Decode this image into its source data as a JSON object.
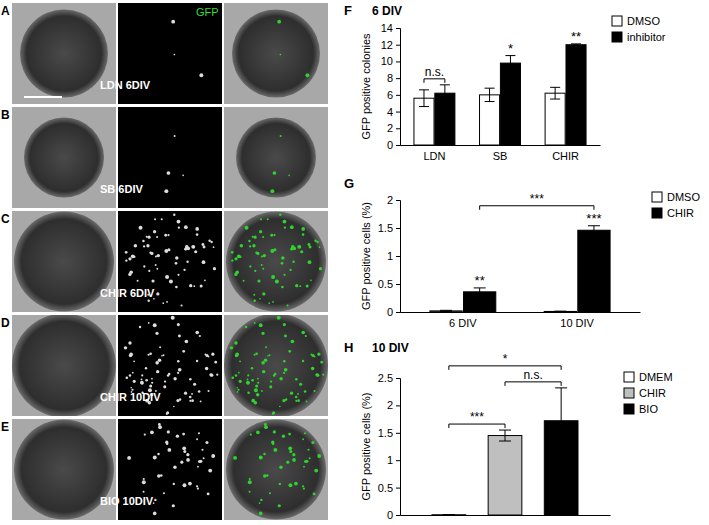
{
  "image_panels": {
    "channel_label": "GFP",
    "rows": [
      {
        "letter": "A",
        "label": "LDN 6DIV"
      },
      {
        "letter": "B",
        "label": "SB 6DIV"
      },
      {
        "letter": "C",
        "label": "CHIR 6DIV"
      },
      {
        "letter": "D",
        "label": "CHIR 10DIV"
      },
      {
        "letter": "E",
        "label": "BIO 10DIV"
      }
    ]
  },
  "chart_data": [
    {
      "type": "bar",
      "panel": "F",
      "title": "6 DIV",
      "y_label": "GFP positive colonies",
      "categories": [
        "LDN",
        "SB",
        "CHIR"
      ],
      "series": [
        {
          "name": "DMSO",
          "color": "#ffffff",
          "values": [
            5.6,
            6.0,
            6.2
          ],
          "errors": [
            1.0,
            0.8,
            0.7
          ]
        },
        {
          "name": "inhibitor",
          "color": "#000000",
          "values": [
            6.2,
            9.8,
            12.0
          ],
          "errors": [
            1.0,
            0.9,
            0.1
          ]
        }
      ],
      "ylim": [
        0,
        14
      ],
      "yticks": [
        0,
        2,
        4,
        6,
        8,
        10,
        12,
        14
      ],
      "legend": "right",
      "annotations": [
        {
          "text": "n.s.",
          "from": {
            "series": "DMSO",
            "category": "LDN"
          },
          "to": {
            "series": "inhibitor",
            "category": "LDN"
          }
        },
        {
          "text": "*",
          "series": "inhibitor",
          "category": "SB"
        },
        {
          "text": "**",
          "series": "inhibitor",
          "category": "CHIR"
        }
      ]
    },
    {
      "type": "bar",
      "panel": "G",
      "y_label": "GFP positive cells (%)",
      "categories": [
        "6 DIV",
        "10 DIV"
      ],
      "series": [
        {
          "name": "DMSO",
          "color": "#ffffff",
          "values": [
            0.02,
            0.01
          ],
          "errors": [
            0.01,
            0.005
          ]
        },
        {
          "name": "CHIR",
          "color": "#000000",
          "values": [
            0.36,
            1.46
          ],
          "errors": [
            0.07,
            0.08
          ]
        }
      ],
      "ylim": [
        0,
        2
      ],
      "yticks": [
        0,
        0.5,
        1,
        1.5,
        2
      ],
      "legend": "right",
      "annotations": [
        {
          "text": "**",
          "series": "CHIR",
          "category": "6 DIV"
        },
        {
          "text": "***",
          "series": "CHIR",
          "category": "10 DIV"
        },
        {
          "text": "***",
          "from": {
            "series": "CHIR",
            "category": "6 DIV"
          },
          "to": {
            "series": "CHIR",
            "category": "10 DIV"
          }
        }
      ]
    },
    {
      "type": "bar",
      "panel": "H",
      "title": "10 DIV",
      "y_label": "GFP positive cells (%)",
      "categories": [
        null
      ],
      "series": [
        {
          "name": "DMEM",
          "color": "#ffffff",
          "values": [
            0.005
          ],
          "errors": [
            0.002
          ]
        },
        {
          "name": "CHIR",
          "color": "#bfbfbf",
          "values": [
            1.45
          ],
          "errors": [
            0.1
          ]
        },
        {
          "name": "BIO",
          "color": "#000000",
          "values": [
            1.72
          ],
          "errors": [
            0.6
          ]
        }
      ],
      "ylim": [
        0,
        2.5
      ],
      "yticks": [
        0,
        0.5,
        1,
        1.5,
        2,
        2.5
      ],
      "legend": "right",
      "annotations": [
        {
          "text": "n.s.",
          "from": {
            "series": "CHIR"
          },
          "to": {
            "series": "BIO"
          }
        },
        {
          "text": "***",
          "from": {
            "series": "DMEM"
          },
          "to": {
            "series": "CHIR"
          }
        },
        {
          "text": "*",
          "from": {
            "series": "DMEM"
          },
          "to": {
            "series": "BIO"
          }
        }
      ]
    }
  ]
}
